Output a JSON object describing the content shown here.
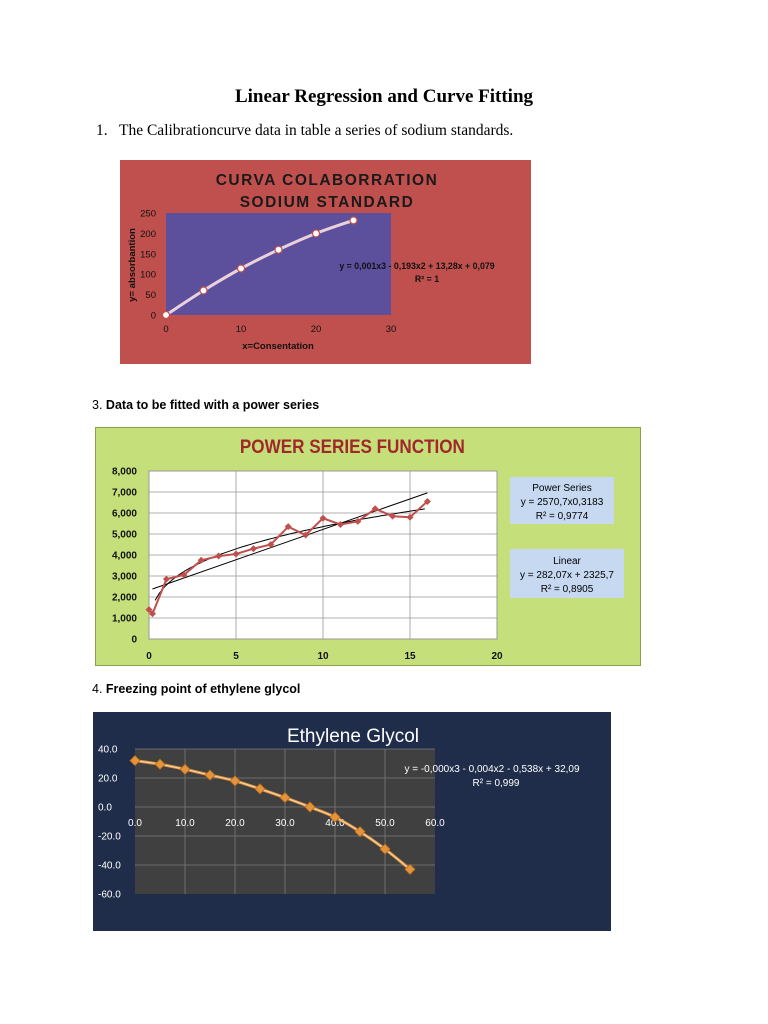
{
  "document": {
    "title": "Linear Regression and Curve Fitting",
    "q1": {
      "number": "1.",
      "text": "The Calibrationcurve data in table a series of sodium standards."
    },
    "q3": {
      "number": "3.",
      "text": "Data to be fitted with a power series"
    },
    "q4": {
      "number": "4.",
      "text": "Freezing point of ethylene glycol"
    }
  },
  "chart_data": [
    {
      "type": "line",
      "title_line1": "CURVA COLABORRATION",
      "title_line2": "SODIUM STANDARD",
      "xlabel": "x=Consentation",
      "ylabel": "y= absorbantion",
      "xlim": [
        0,
        30
      ],
      "ylim": [
        0,
        250
      ],
      "x_ticks": [
        "0",
        "10",
        "20",
        "30"
      ],
      "y_ticks": [
        "0",
        "50",
        "100",
        "150",
        "200",
        "250"
      ],
      "series": [
        {
          "x": [
            0,
            5,
            10,
            15,
            20,
            25
          ],
          "y": [
            0,
            60,
            114,
            160,
            200,
            232
          ]
        }
      ],
      "equation": "y = 0,001x3 - 0,193x2 + 13,28x + 0,079",
      "r_squared": "R² = 1",
      "grid": false,
      "colors": {
        "background": "#c0504d",
        "plot": "#5c4f9c",
        "line": "#ead1dc",
        "marker": "#ffffff"
      }
    },
    {
      "type": "line",
      "title": "POWER SERIES FUNCTION",
      "xlim": [
        0,
        20
      ],
      "ylim": [
        0,
        8000
      ],
      "x_ticks": [
        "0",
        "5",
        "10",
        "15",
        "20"
      ],
      "y_ticks": [
        "0",
        "1,000",
        "2,000",
        "3,000",
        "4,000",
        "5,000",
        "6,000",
        "7,000",
        "8,000"
      ],
      "series": [
        {
          "x": [
            0,
            0.2,
            1,
            2,
            3,
            4,
            5,
            6,
            7,
            8,
            9,
            10,
            11,
            12,
            13,
            14,
            15,
            16
          ],
          "y": [
            1400,
            1200,
            2850,
            3050,
            3750,
            3950,
            4050,
            4300,
            4500,
            5350,
            4950,
            5750,
            5450,
            5600,
            6200,
            5850,
            5800,
            6550
          ]
        }
      ],
      "trendlines": [
        {
          "label": "Power Series",
          "equation": "y = 2570,7x0,3183",
          "r_squared": "R² = 0,9774"
        },
        {
          "label": "Linear",
          "equation": "y = 282,07x + 2325,7",
          "r_squared": "R² = 0,8905"
        }
      ],
      "grid": true,
      "colors": {
        "background": "#c5e07a",
        "plot": "#ffffff",
        "line": "#c0504d",
        "title": "#a0282b",
        "legend": "#c6d9f1"
      }
    },
    {
      "type": "line",
      "title": "Ethylene Glycol",
      "xlim": [
        0,
        60
      ],
      "ylim": [
        -60,
        40
      ],
      "x_ticks": [
        "0.0",
        "10.0",
        "20.0",
        "30.0",
        "40.0",
        "50.0",
        "60.0"
      ],
      "y_ticks": [
        "40.0",
        "20.0",
        "0.0",
        "-20.0",
        "-40.0",
        "-60.0"
      ],
      "series": [
        {
          "x": [
            0,
            5,
            10,
            15,
            20,
            25,
            30,
            35,
            40,
            45,
            50,
            55
          ],
          "y": [
            32,
            29.5,
            26,
            22,
            18,
            12.5,
            6.5,
            0,
            -7,
            -17,
            -29,
            -43
          ]
        }
      ],
      "equation": "y = -0,000x3 - 0,004x2 - 0,538x + 32,09",
      "r_squared": "R² = 0,999",
      "grid": true,
      "colors": {
        "background": "#1f2d4a",
        "plot": "#404040",
        "line": "#e3943b",
        "marker": "#e3943b"
      }
    }
  ]
}
